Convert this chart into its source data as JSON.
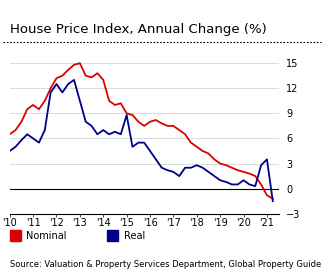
{
  "title": "House Price Index, Annual Change (%)",
  "source": "Source: Valuation & Property Services Department, Global Property Guide",
  "xlim": [
    2010,
    2021.5
  ],
  "ylim": [
    -3,
    16
  ],
  "yticks": [
    -3,
    0,
    3,
    6,
    9,
    12,
    15
  ],
  "xtick_labels": [
    "'10",
    "'11",
    "'12",
    "'13",
    "'14",
    "'15",
    "'16",
    "'17",
    "'18",
    "'19",
    "'20",
    "'21"
  ],
  "xtick_positions": [
    2010,
    2011,
    2012,
    2013,
    2014,
    2015,
    2016,
    2017,
    2018,
    2019,
    2020,
    2021
  ],
  "nominal_color": "#dd0000",
  "real_color": "#00008b",
  "nominal_x": [
    2010.0,
    2010.25,
    2010.5,
    2010.75,
    2011.0,
    2011.25,
    2011.5,
    2011.75,
    2012.0,
    2012.25,
    2012.5,
    2012.75,
    2013.0,
    2013.25,
    2013.5,
    2013.75,
    2014.0,
    2014.25,
    2014.5,
    2014.75,
    2015.0,
    2015.25,
    2015.5,
    2015.75,
    2016.0,
    2016.25,
    2016.5,
    2016.75,
    2017.0,
    2017.25,
    2017.5,
    2017.75,
    2018.0,
    2018.25,
    2018.5,
    2018.75,
    2019.0,
    2019.25,
    2019.5,
    2019.75,
    2020.0,
    2020.25,
    2020.5,
    2020.75,
    2021.0,
    2021.25
  ],
  "nominal_y": [
    6.5,
    7.0,
    8.0,
    9.5,
    10.0,
    9.5,
    10.5,
    12.0,
    13.2,
    13.5,
    14.2,
    14.8,
    15.0,
    13.5,
    13.3,
    13.8,
    13.0,
    10.5,
    10.0,
    10.2,
    9.0,
    8.8,
    8.0,
    7.5,
    8.0,
    8.2,
    7.8,
    7.5,
    7.5,
    7.0,
    6.5,
    5.5,
    5.0,
    4.5,
    4.2,
    3.5,
    3.0,
    2.8,
    2.5,
    2.2,
    2.0,
    1.8,
    1.5,
    0.5,
    -0.8,
    -1.2
  ],
  "real_x": [
    2010.0,
    2010.25,
    2010.5,
    2010.75,
    2011.0,
    2011.25,
    2011.5,
    2011.75,
    2012.0,
    2012.25,
    2012.5,
    2012.75,
    2013.0,
    2013.25,
    2013.5,
    2013.75,
    2014.0,
    2014.25,
    2014.5,
    2014.75,
    2015.0,
    2015.25,
    2015.5,
    2015.75,
    2016.0,
    2016.25,
    2016.5,
    2016.75,
    2017.0,
    2017.25,
    2017.5,
    2017.75,
    2018.0,
    2018.25,
    2018.5,
    2018.75,
    2019.0,
    2019.25,
    2019.5,
    2019.75,
    2020.0,
    2020.25,
    2020.5,
    2020.75,
    2021.0,
    2021.25
  ],
  "real_y": [
    4.5,
    5.0,
    5.8,
    6.5,
    6.0,
    5.5,
    7.0,
    11.5,
    12.5,
    11.5,
    12.5,
    13.0,
    10.5,
    8.0,
    7.5,
    6.5,
    7.0,
    6.5,
    6.8,
    6.5,
    8.8,
    5.0,
    5.5,
    5.5,
    4.5,
    3.5,
    2.5,
    2.2,
    2.0,
    1.5,
    2.5,
    2.5,
    2.8,
    2.5,
    2.0,
    1.5,
    1.0,
    0.8,
    0.5,
    0.5,
    1.0,
    0.5,
    0.3,
    2.8,
    3.5,
    -1.5
  ],
  "background_color": "#ffffff",
  "grid_color": "#cccccc",
  "title_fontsize": 9.5,
  "axis_fontsize": 7.0,
  "source_fontsize": 6.0
}
